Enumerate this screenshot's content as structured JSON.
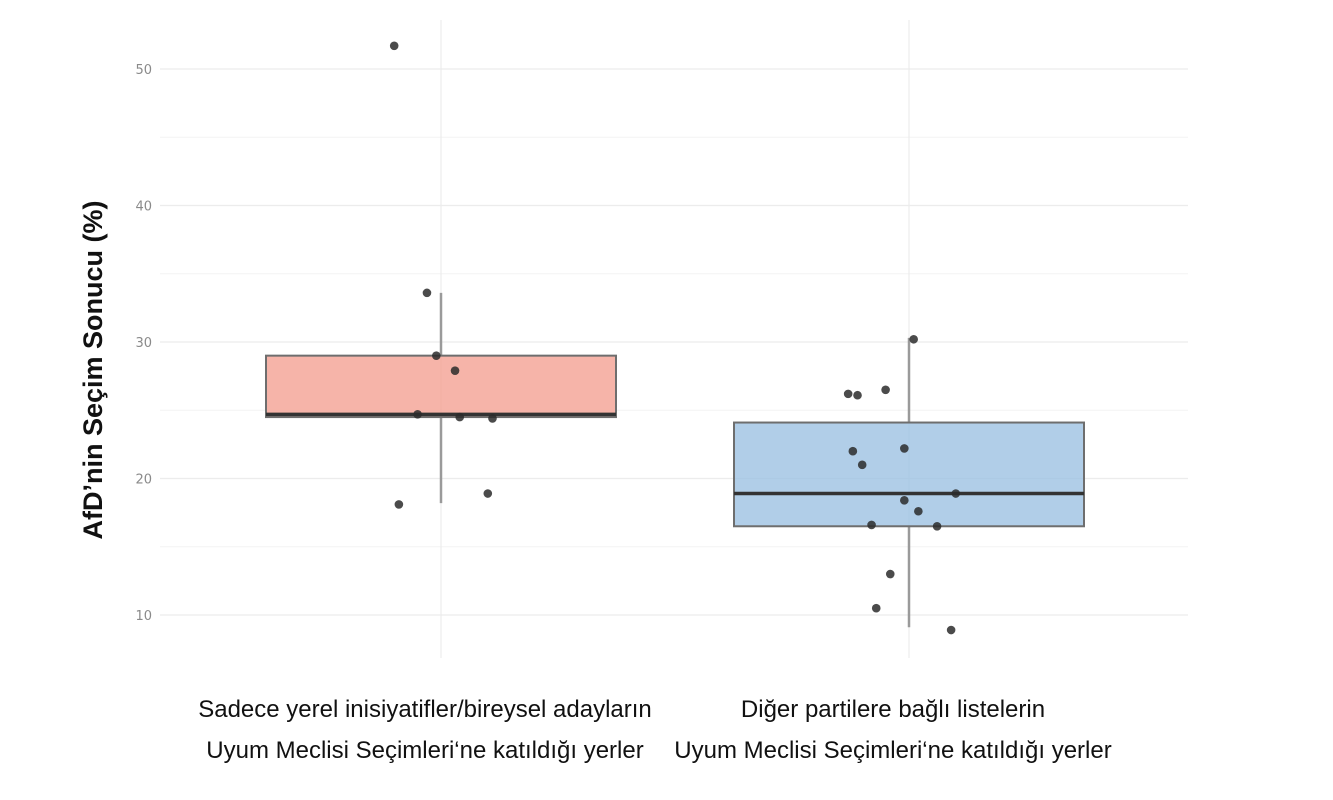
{
  "chart_data": {
    "type": "box",
    "ylabel": "AfD’nin Seçim Sonucu (%)",
    "xlabel": "",
    "ylim": [
      7,
      54
    ],
    "yticks": [
      10,
      20,
      30,
      40,
      50
    ],
    "grid": true,
    "legend": "none",
    "categories": [
      {
        "label_lines": [
          "Sadece yerel inisiyatifler/bireysel adayların",
          "Uyum Meclisi Seçimleri‘ne katıldığı yerler"
        ],
        "color": "#f4a193",
        "box": {
          "whisker_low": 18.2,
          "q1": 24.5,
          "median": 24.7,
          "q3": 29.0,
          "whisker_high": 33.6
        },
        "points": [
          {
            "offset": -0.1,
            "y": 51.7
          },
          {
            "offset": -0.03,
            "y": 33.6
          },
          {
            "offset": -0.01,
            "y": 29.0
          },
          {
            "offset": 0.03,
            "y": 27.9
          },
          {
            "offset": -0.05,
            "y": 24.7
          },
          {
            "offset": 0.04,
            "y": 24.5
          },
          {
            "offset": 0.11,
            "y": 24.4
          },
          {
            "offset": -0.09,
            "y": 18.1
          },
          {
            "offset": 0.1,
            "y": 18.9
          }
        ]
      },
      {
        "label_lines": [
          "Diğer partilere bağlı listelerin",
          "Uyum Meclisi Seçimleri‘ne katıldığı yerler"
        ],
        "color": "#9dc2e2",
        "box": {
          "whisker_low": 9.1,
          "q1": 16.5,
          "median": 18.9,
          "q3": 24.1,
          "whisker_high": 30.3
        },
        "points": [
          {
            "offset": 0.01,
            "y": 30.2
          },
          {
            "offset": -0.13,
            "y": 26.2
          },
          {
            "offset": -0.11,
            "y": 26.1
          },
          {
            "offset": -0.05,
            "y": 26.5
          },
          {
            "offset": -0.12,
            "y": 22.0
          },
          {
            "offset": -0.01,
            "y": 22.2
          },
          {
            "offset": -0.1,
            "y": 21.0
          },
          {
            "offset": 0.1,
            "y": 18.9
          },
          {
            "offset": -0.01,
            "y": 18.4
          },
          {
            "offset": 0.02,
            "y": 17.6
          },
          {
            "offset": -0.08,
            "y": 16.6
          },
          {
            "offset": 0.06,
            "y": 16.5
          },
          {
            "offset": -0.04,
            "y": 13.0
          },
          {
            "offset": -0.07,
            "y": 10.5
          },
          {
            "offset": 0.09,
            "y": 8.9
          }
        ]
      }
    ]
  }
}
